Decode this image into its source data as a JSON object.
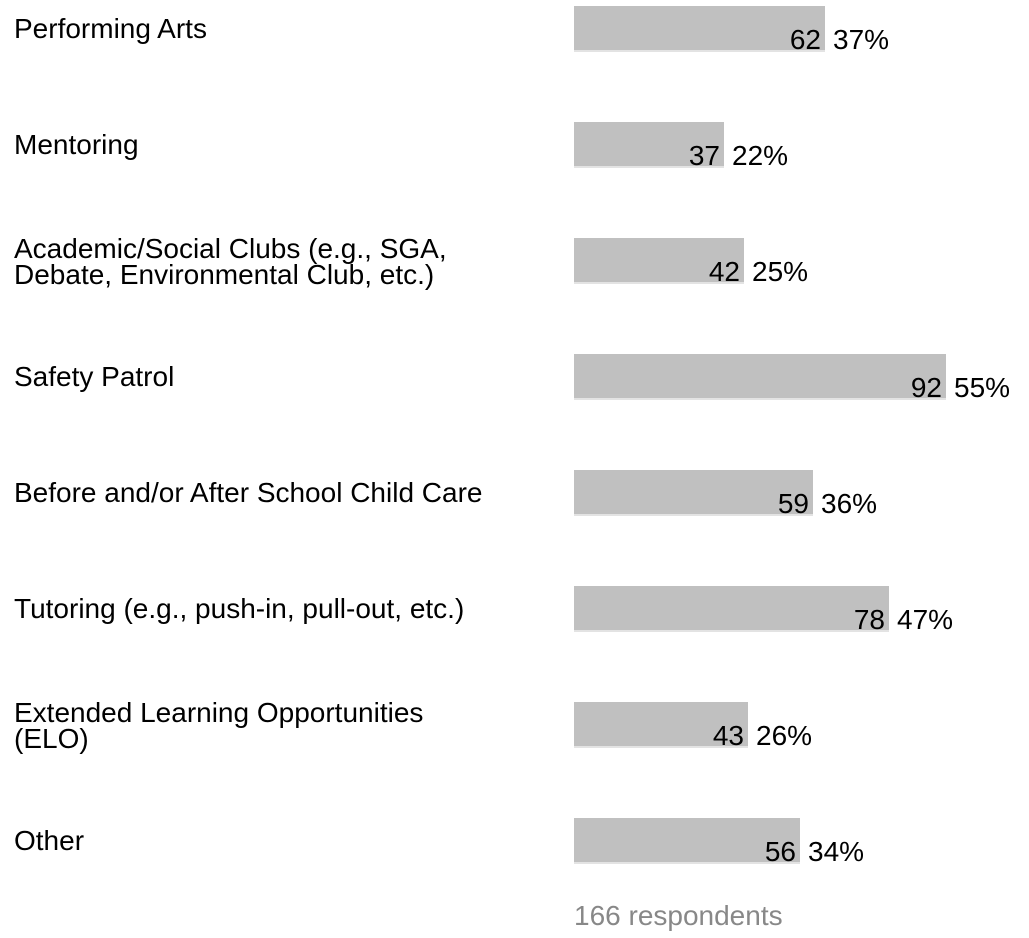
{
  "chart_data": {
    "type": "bar",
    "orientation": "horizontal",
    "categories": [
      "Performing Arts",
      "Mentoring",
      "Academic/Social Clubs (e.g., SGA,\nDebate, Environmental Club, etc.)",
      "Safety Patrol",
      "Before and/or After School Child Care",
      "Tutoring (e.g., push-in, pull-out, etc.)",
      "Extended Learning Opportunities\n(ELO)",
      "Other"
    ],
    "values": [
      62,
      37,
      42,
      92,
      59,
      78,
      43,
      56
    ],
    "percent_labels": [
      "37%",
      "22%",
      "25%",
      "55%",
      "36%",
      "47%",
      "26%",
      "34%"
    ],
    "xlim": [
      0,
      92
    ],
    "bar_color": "#c0c0c0",
    "grid": false,
    "legend": "none"
  },
  "footer": {
    "respondents": "166 respondents"
  }
}
